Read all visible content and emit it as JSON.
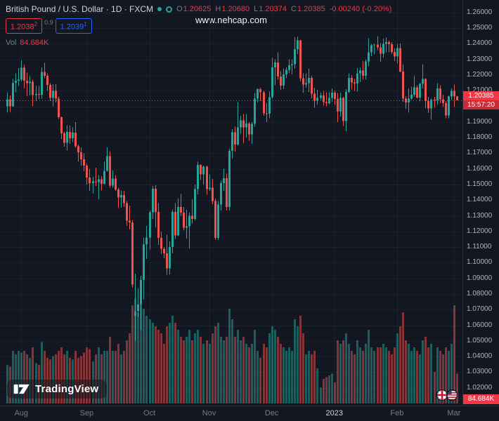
{
  "header": {
    "symbol_title": "British Pound / U.S. Dollar · 1D · FXCM",
    "ohlc": {
      "o_label": "O",
      "o": "1.20625",
      "h_label": "H",
      "h": "1.20680",
      "l_label": "L",
      "l": "1.20374",
      "c_label": "C",
      "c": "1.20385",
      "change": "-0.00240 (-0.20%)"
    },
    "bid": "1.2038",
    "bid_sup": "2",
    "spread": "0.9",
    "ask": "1.2039",
    "ask_sup": "1",
    "vol_label": "Vol",
    "vol_value": "84.684K"
  },
  "watermark": "www.nehcap.com",
  "logo": {
    "text": "TradingView"
  },
  "price_scale": {
    "labels": [
      "1.26000",
      "1.25000",
      "1.24000",
      "1.23000",
      "1.22000",
      "1.21000",
      "1.20000",
      "1.19000",
      "1.18000",
      "1.17000",
      "1.16000",
      "1.15000",
      "1.14000",
      "1.13000",
      "1.12000",
      "1.11000",
      "1.10000",
      "1.09000",
      "1.08000",
      "1.07000",
      "1.06000",
      "1.05000",
      "1.04000",
      "1.03000",
      "1.02000"
    ],
    "last_price": "1.20385",
    "countdown": "15:57:20",
    "volume_badge": "84.684K"
  },
  "colors": {
    "background": "#131722",
    "up": "#26a69a",
    "down": "#ef5350",
    "last_price": "#f23645",
    "ask_blue": "#2962ff",
    "text_primary": "#d1d4dc",
    "text_muted": "#787b86",
    "axis_text": "#b2b5be",
    "grid": "#1c202b",
    "border": "#2a2e39"
  },
  "chart_data": {
    "type": "candlestick",
    "title": "British Pound / U.S. Dollar",
    "symbol": "GBP/USD",
    "interval": "1D",
    "exchange": "FXCM",
    "price_range": [
      1.01,
      1.268
    ],
    "last": {
      "open": 1.20625,
      "high": 1.2068,
      "low": 1.20374,
      "close": 1.20385,
      "change": -0.0024,
      "change_pct": -0.2,
      "volume_k": 84.684
    },
    "month_ticks": [
      {
        "label": "Aug",
        "index": 5
      },
      {
        "label": "Sep",
        "index": 28
      },
      {
        "label": "Oct",
        "index": 50
      },
      {
        "label": "Nov",
        "index": 71
      },
      {
        "label": "Dec",
        "index": 93
      },
      {
        "label": "2023",
        "index": 115,
        "year": true
      },
      {
        "label": "Feb",
        "index": 137
      },
      {
        "label": "Mar",
        "index": 157
      }
    ],
    "ohlcv_format": [
      "open",
      "high",
      "low",
      "close",
      "volume_k"
    ],
    "ohlcv": [
      [
        1.2,
        1.209,
        1.196,
        1.2045,
        110
      ],
      [
        1.2045,
        1.207,
        1.1965,
        1.2,
        105
      ],
      [
        1.2,
        1.2175,
        1.1995,
        1.215,
        150
      ],
      [
        1.215,
        1.221,
        1.209,
        1.2165,
        140
      ],
      [
        1.2165,
        1.2245,
        1.213,
        1.217,
        150
      ],
      [
        1.217,
        1.2295,
        1.216,
        1.2248,
        145
      ],
      [
        1.2248,
        1.2265,
        1.2115,
        1.2164,
        150
      ],
      [
        1.2164,
        1.2215,
        1.2065,
        1.2149,
        140
      ],
      [
        1.2149,
        1.2193,
        1.207,
        1.2157,
        130
      ],
      [
        1.2157,
        1.217,
        1.2003,
        1.2072,
        160
      ],
      [
        1.2072,
        1.2133,
        1.2035,
        1.2078,
        115
      ],
      [
        1.2078,
        1.213,
        1.2045,
        1.2074,
        110
      ],
      [
        1.2074,
        1.2249,
        1.2047,
        1.222,
        175
      ],
      [
        1.222,
        1.2278,
        1.218,
        1.2196,
        150
      ],
      [
        1.2196,
        1.2211,
        1.21,
        1.2138,
        130
      ],
      [
        1.2138,
        1.2149,
        1.2035,
        1.2055,
        125
      ],
      [
        1.2055,
        1.2142,
        1.2,
        1.2098,
        135
      ],
      [
        1.2098,
        1.2142,
        1.2026,
        1.2049,
        140
      ],
      [
        1.2049,
        1.206,
        1.192,
        1.193,
        150
      ],
      [
        1.193,
        1.1935,
        1.1792,
        1.1827,
        160
      ],
      [
        1.1827,
        1.1837,
        1.1742,
        1.1767,
        140
      ],
      [
        1.1767,
        1.188,
        1.1718,
        1.1836,
        150
      ],
      [
        1.1836,
        1.1876,
        1.176,
        1.1796,
        130
      ],
      [
        1.1796,
        1.1865,
        1.1772,
        1.1832,
        125
      ],
      [
        1.1832,
        1.19,
        1.1735,
        1.1745,
        150
      ],
      [
        1.1745,
        1.1755,
        1.1649,
        1.1706,
        130
      ],
      [
        1.1706,
        1.1738,
        1.1622,
        1.1662,
        135
      ],
      [
        1.1662,
        1.17,
        1.1585,
        1.1622,
        145
      ],
      [
        1.1622,
        1.1633,
        1.1499,
        1.1544,
        160
      ],
      [
        1.1544,
        1.16,
        1.146,
        1.151,
        155
      ],
      [
        1.151,
        1.155,
        1.1444,
        1.1521,
        120
      ],
      [
        1.1521,
        1.1608,
        1.149,
        1.1515,
        140
      ],
      [
        1.1515,
        1.156,
        1.1405,
        1.1534,
        160
      ],
      [
        1.1534,
        1.1554,
        1.1462,
        1.1505,
        140
      ],
      [
        1.1505,
        1.1648,
        1.1501,
        1.1588,
        150
      ],
      [
        1.1588,
        1.1738,
        1.1583,
        1.1681,
        150
      ],
      [
        1.1681,
        1.1713,
        1.148,
        1.1494,
        190
      ],
      [
        1.1494,
        1.159,
        1.148,
        1.1538,
        150
      ],
      [
        1.1538,
        1.156,
        1.1459,
        1.1468,
        150
      ],
      [
        1.1468,
        1.148,
        1.135,
        1.1416,
        170
      ],
      [
        1.1416,
        1.1461,
        1.1351,
        1.1432,
        140
      ],
      [
        1.1432,
        1.146,
        1.1356,
        1.138,
        150
      ],
      [
        1.138,
        1.1395,
        1.1235,
        1.1268,
        180
      ],
      [
        1.1268,
        1.1365,
        1.1212,
        1.1258,
        200
      ],
      [
        1.1258,
        1.1273,
        1.084,
        1.0861,
        280
      ],
      [
        1.066,
        1.093,
        1.05,
        1.0689,
        300
      ],
      [
        1.0689,
        1.0837,
        1.0653,
        1.0734,
        260
      ],
      [
        1.0734,
        1.0916,
        1.057,
        1.0889,
        290
      ],
      [
        1.0889,
        1.116,
        1.0763,
        1.1117,
        270
      ],
      [
        1.1117,
        1.1235,
        1.1025,
        1.1161,
        250
      ],
      [
        1.1161,
        1.1334,
        1.1085,
        1.1323,
        240
      ],
      [
        1.1323,
        1.149,
        1.128,
        1.1473,
        230
      ],
      [
        1.1473,
        1.1495,
        1.1225,
        1.1325,
        220
      ],
      [
        1.1325,
        1.1382,
        1.1113,
        1.116,
        210
      ],
      [
        1.116,
        1.1199,
        1.1055,
        1.109,
        200
      ],
      [
        1.109,
        1.11,
        1.1028,
        1.106,
        170
      ],
      [
        1.106,
        1.118,
        1.0923,
        1.0963,
        220
      ],
      [
        1.0963,
        1.1137,
        1.0925,
        1.11,
        230
      ],
      [
        1.11,
        1.134,
        1.106,
        1.1325,
        250
      ],
      [
        1.1325,
        1.138,
        1.1152,
        1.1174,
        230
      ],
      [
        1.1174,
        1.141,
        1.117,
        1.1357,
        210
      ],
      [
        1.1357,
        1.144,
        1.1298,
        1.132,
        190
      ],
      [
        1.132,
        1.1357,
        1.1205,
        1.1223,
        180
      ],
      [
        1.1223,
        1.1338,
        1.1155,
        1.1234,
        190
      ],
      [
        1.1234,
        1.132,
        1.1092,
        1.1301,
        210
      ],
      [
        1.1301,
        1.1405,
        1.1252,
        1.1281,
        180
      ],
      [
        1.1281,
        1.15,
        1.127,
        1.147,
        200
      ],
      [
        1.147,
        1.1645,
        1.1437,
        1.1625,
        210
      ],
      [
        1.1625,
        1.163,
        1.153,
        1.1565,
        190
      ],
      [
        1.1565,
        1.1622,
        1.15,
        1.1615,
        170
      ],
      [
        1.1615,
        1.162,
        1.1435,
        1.147,
        180
      ],
      [
        1.147,
        1.1565,
        1.146,
        1.148,
        170
      ],
      [
        1.148,
        1.1535,
        1.1375,
        1.1395,
        200
      ],
      [
        1.1395,
        1.141,
        1.1148,
        1.116,
        220
      ],
      [
        1.116,
        1.1395,
        1.1145,
        1.1373,
        230
      ],
      [
        1.1373,
        1.1525,
        1.1335,
        1.151,
        190
      ],
      [
        1.151,
        1.16,
        1.146,
        1.154,
        180
      ],
      [
        1.154,
        1.157,
        1.1333,
        1.1357,
        190
      ],
      [
        1.1357,
        1.1728,
        1.1335,
        1.1715,
        270
      ],
      [
        1.1715,
        1.1855,
        1.1665,
        1.1835,
        240
      ],
      [
        1.1835,
        1.187,
        1.171,
        1.1755,
        190
      ],
      [
        1.1755,
        1.2028,
        1.175,
        1.1866,
        210
      ],
      [
        1.1866,
        1.194,
        1.1825,
        1.1911,
        180
      ],
      [
        1.1911,
        1.195,
        1.1762,
        1.1866,
        190
      ],
      [
        1.1866,
        1.195,
        1.18,
        1.189,
        170
      ],
      [
        1.189,
        1.19,
        1.178,
        1.182,
        160
      ],
      [
        1.182,
        1.19,
        1.176,
        1.1888,
        170
      ],
      [
        1.1888,
        1.2085,
        1.187,
        1.2049,
        210
      ],
      [
        1.2049,
        1.2115,
        1.2025,
        1.211,
        150
      ],
      [
        1.211,
        1.212,
        1.2035,
        1.209,
        130
      ],
      [
        1.209,
        1.21,
        1.194,
        1.1955,
        170
      ],
      [
        1.1955,
        1.2022,
        1.19,
        1.1953,
        160
      ],
      [
        1.1953,
        1.2095,
        1.1925,
        1.2058,
        200
      ],
      [
        1.2058,
        1.231,
        1.205,
        1.225,
        220
      ],
      [
        1.225,
        1.23,
        1.2135,
        1.228,
        210
      ],
      [
        1.228,
        1.2345,
        1.217,
        1.219,
        190
      ],
      [
        1.219,
        1.2225,
        1.2105,
        1.2133,
        170
      ],
      [
        1.2133,
        1.2242,
        1.211,
        1.2205,
        160
      ],
      [
        1.2205,
        1.225,
        1.218,
        1.2234,
        150
      ],
      [
        1.2234,
        1.23,
        1.221,
        1.2262,
        160
      ],
      [
        1.2262,
        1.23,
        1.2205,
        1.227,
        150
      ],
      [
        1.227,
        1.2443,
        1.224,
        1.2365,
        240
      ],
      [
        1.2365,
        1.2446,
        1.2335,
        1.2422,
        220
      ],
      [
        1.2422,
        1.2425,
        1.216,
        1.218,
        250
      ],
      [
        1.218,
        1.221,
        1.2085,
        1.214,
        200
      ],
      [
        1.214,
        1.221,
        1.212,
        1.2148,
        140
      ],
      [
        1.2148,
        1.224,
        1.209,
        1.2183,
        150
      ],
      [
        1.2183,
        1.2195,
        1.205,
        1.2082,
        140
      ],
      [
        1.2082,
        1.212,
        1.1992,
        1.2037,
        150
      ],
      [
        1.2037,
        1.2105,
        1.201,
        1.2055,
        100
      ],
      [
        1.2055,
        1.2088,
        1.2043,
        1.207,
        45
      ],
      [
        1.207,
        1.2098,
        1.2004,
        1.2027,
        70
      ],
      [
        1.2027,
        1.209,
        1.2,
        1.202,
        75
      ],
      [
        1.202,
        1.209,
        1.2012,
        1.2053,
        80
      ],
      [
        1.2053,
        1.2115,
        1.203,
        1.2088,
        85
      ],
      [
        1.2088,
        1.2102,
        1.201,
        1.2048,
        60
      ],
      [
        1.2048,
        1.2085,
        1.19,
        1.1966,
        180
      ],
      [
        1.1966,
        1.2088,
        1.1935,
        1.2054,
        170
      ],
      [
        1.2054,
        1.206,
        1.1875,
        1.1907,
        180
      ],
      [
        1.1907,
        1.211,
        1.184,
        1.2093,
        200
      ],
      [
        1.2093,
        1.221,
        1.2085,
        1.2181,
        170
      ],
      [
        1.2181,
        1.22,
        1.2107,
        1.2153,
        150
      ],
      [
        1.2153,
        1.2175,
        1.21,
        1.2145,
        140
      ],
      [
        1.2145,
        1.2245,
        1.2095,
        1.221,
        180
      ],
      [
        1.221,
        1.2248,
        1.2155,
        1.2228,
        160
      ],
      [
        1.2228,
        1.229,
        1.217,
        1.2196,
        150
      ],
      [
        1.2196,
        1.23,
        1.217,
        1.2288,
        170
      ],
      [
        1.2288,
        1.2436,
        1.2255,
        1.2346,
        210
      ],
      [
        1.2346,
        1.24,
        1.232,
        1.239,
        160
      ],
      [
        1.239,
        1.24,
        1.2335,
        1.2396,
        150
      ],
      [
        1.2396,
        1.2448,
        1.236,
        1.2377,
        160
      ],
      [
        1.2377,
        1.2405,
        1.2285,
        1.2337,
        160
      ],
      [
        1.2337,
        1.2433,
        1.2312,
        1.24,
        170
      ],
      [
        1.24,
        1.244,
        1.2345,
        1.241,
        160
      ],
      [
        1.241,
        1.242,
        1.2345,
        1.2398,
        150
      ],
      [
        1.2398,
        1.241,
        1.2335,
        1.2349,
        140
      ],
      [
        1.2349,
        1.237,
        1.229,
        1.2318,
        160
      ],
      [
        1.2318,
        1.24,
        1.2275,
        1.2372,
        200
      ],
      [
        1.2372,
        1.2402,
        1.2218,
        1.2223,
        220
      ],
      [
        1.2223,
        1.227,
        1.203,
        1.205,
        260
      ],
      [
        1.205,
        1.2065,
        1.1985,
        1.2024,
        180
      ],
      [
        1.2024,
        1.2115,
        1.196,
        1.2049,
        170
      ],
      [
        1.2049,
        1.2125,
        1.204,
        1.2074,
        150
      ],
      [
        1.2074,
        1.2194,
        1.206,
        1.2122,
        160
      ],
      [
        1.2122,
        1.2135,
        1.205,
        1.2057,
        150
      ],
      [
        1.2057,
        1.215,
        1.2032,
        1.2144,
        140
      ],
      [
        1.2144,
        1.227,
        1.2115,
        1.2175,
        180
      ],
      [
        1.2175,
        1.218,
        1.199,
        1.2035,
        190
      ],
      [
        1.2035,
        1.206,
        1.1958,
        1.1987,
        160
      ],
      [
        1.1987,
        1.205,
        1.1915,
        1.2042,
        170
      ],
      [
        1.2042,
        1.206,
        1.1992,
        1.2038,
        90
      ],
      [
        1.2038,
        1.2148,
        1.201,
        1.2114,
        160
      ],
      [
        1.2114,
        1.2135,
        1.202,
        1.2045,
        150
      ],
      [
        1.2045,
        1.2075,
        1.1995,
        1.2021,
        140
      ],
      [
        1.2021,
        1.2035,
        1.1925,
        1.1943,
        160
      ],
      [
        1.1943,
        1.207,
        1.1923,
        1.2062,
        150
      ],
      [
        1.2062,
        1.2115,
        1.204,
        1.21,
        170
      ],
      [
        1.21,
        1.214,
        1.1995,
        1.20625,
        280
      ],
      [
        1.20625,
        1.2068,
        1.20374,
        1.20385,
        84.684
      ]
    ]
  }
}
